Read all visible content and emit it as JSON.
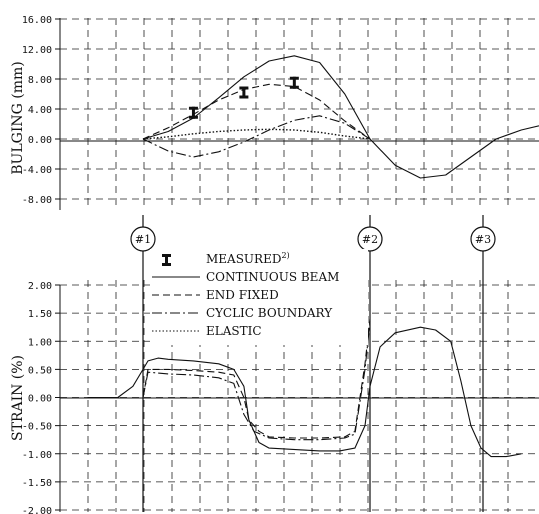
{
  "chart_data": [
    {
      "type": "line",
      "ylabel": "BULGING  (mm)",
      "ylim": [
        -8,
        16
      ],
      "yticks": [
        "16.00",
        "12.00",
        "8.00",
        "4.00",
        "0.00",
        "-4.00",
        "-8.00"
      ],
      "grid": true,
      "series": [
        {
          "name": "CONTINUOUS BEAM",
          "style": "solid",
          "x": [
            0.5,
            1.0,
            1.5,
            2.0,
            2.5,
            3.0,
            3.5,
            4.0,
            4.5,
            5.0,
            5.5,
            6.0,
            6.5,
            7.0,
            7.5,
            8.0,
            8.5,
            9.0,
            9.5,
            10.0
          ],
          "y": [
            0,
            1.0,
            2.8,
            5.5,
            8.3,
            10.4,
            11.1,
            10.2,
            6.0,
            0,
            -3.5,
            -5.2,
            -4.8,
            -2.4,
            0,
            1.2,
            2.0,
            2.3,
            2.1,
            1.8
          ]
        },
        {
          "name": "END FIXED",
          "style": "dashed",
          "x": [
            0.5,
            1.0,
            1.5,
            2.0,
            2.5,
            3.0,
            3.5,
            4.0,
            4.5,
            5.0
          ],
          "y": [
            0,
            1.5,
            3.3,
            5.2,
            6.6,
            7.3,
            7.0,
            5.2,
            2.4,
            0
          ]
        },
        {
          "name": "CYCLIC BOUNDARY",
          "style": "dashdot",
          "x": [
            0.5,
            1.0,
            1.5,
            2.0,
            2.5,
            3.0,
            3.5,
            4.0,
            4.5,
            5.0
          ],
          "y": [
            0,
            -1.6,
            -2.4,
            -1.7,
            -0.4,
            1.2,
            2.5,
            3.1,
            2.1,
            0
          ]
        },
        {
          "name": "ELASTIC",
          "style": "dotted",
          "x": [
            0.5,
            1.0,
            1.5,
            2.0,
            2.5,
            3.0,
            3.5,
            4.0,
            4.5,
            5.0
          ],
          "y": [
            0,
            0.3,
            0.7,
            1.0,
            1.2,
            1.3,
            1.2,
            0.9,
            0.4,
            0
          ]
        },
        {
          "name": "MEASURED²⁾",
          "style": "marker",
          "x": [
            1.5,
            2.5,
            3.5
          ],
          "y": [
            3.5,
            6.2,
            7.5
          ]
        }
      ]
    },
    {
      "type": "line",
      "ylabel": "STRAIN  (%)",
      "ylim": [
        -2.0,
        2.0
      ],
      "yticks": [
        "2.00",
        "1.50",
        "1.00",
        "0.50",
        "0.00",
        "-0.50",
        "-1.00",
        "-1.50",
        "-2.00"
      ],
      "grid": true,
      "series": [
        {
          "name": "CONTINUOUS BEAM",
          "style": "solid",
          "x": [
            -0.6,
            0,
            0.3,
            0.5,
            0.6,
            0.8,
            1.0,
            1.5,
            2.0,
            2.3,
            2.5,
            2.6,
            2.8,
            3.0,
            4.0,
            4.4,
            4.7,
            4.9,
            5.0,
            5.2,
            5.5,
            6.0,
            6.3,
            6.6,
            6.8,
            7.0,
            7.2,
            7.4,
            7.7,
            8.0
          ],
          "y": [
            0,
            0,
            0.2,
            0.5,
            0.65,
            0.7,
            0.68,
            0.65,
            0.6,
            0.5,
            0.2,
            -0.4,
            -0.8,
            -0.9,
            -0.95,
            -0.95,
            -0.9,
            -0.5,
            0.2,
            0.9,
            1.15,
            1.25,
            1.2,
            1.0,
            0.3,
            -0.5,
            -0.9,
            -1.05,
            -1.05,
            -1.0
          ]
        },
        {
          "name": "END FIXED",
          "style": "dashed",
          "x": [
            0.5,
            0.6,
            1.0,
            1.5,
            2.0,
            2.3,
            2.5,
            2.6,
            2.8,
            3.0,
            3.5,
            4.0,
            4.5,
            4.7,
            4.9,
            5.0
          ],
          "y": [
            0,
            0.5,
            0.5,
            0.48,
            0.45,
            0.4,
            0.0,
            -0.4,
            -0.6,
            -0.7,
            -0.72,
            -0.72,
            -0.7,
            -0.6,
            0.6,
            1.4
          ]
        },
        {
          "name": "CYCLIC BOUNDARY",
          "style": "dashdot",
          "x": [
            0.5,
            0.6,
            1.0,
            1.5,
            2.0,
            2.3,
            2.5,
            2.7,
            3.0,
            3.5,
            4.0,
            4.5,
            4.7,
            4.9,
            5.0
          ],
          "y": [
            0,
            0.45,
            0.42,
            0.4,
            0.35,
            0.25,
            -0.3,
            -0.6,
            -0.72,
            -0.75,
            -0.75,
            -0.72,
            -0.65,
            0.5,
            1.35
          ]
        }
      ]
    }
  ],
  "markers": [
    "#1",
    "#2",
    "#3"
  ],
  "legend": {
    "items": [
      {
        "label": "MEASURED",
        "sup": "2)",
        "style": "marker"
      },
      {
        "label": "CONTINUOUS BEAM",
        "style": "solid"
      },
      {
        "label": "END FIXED",
        "style": "dashed"
      },
      {
        "label": "CYCLIC BOUNDARY",
        "style": "dashdot"
      },
      {
        "label": "ELASTIC",
        "style": "dotted"
      }
    ]
  }
}
